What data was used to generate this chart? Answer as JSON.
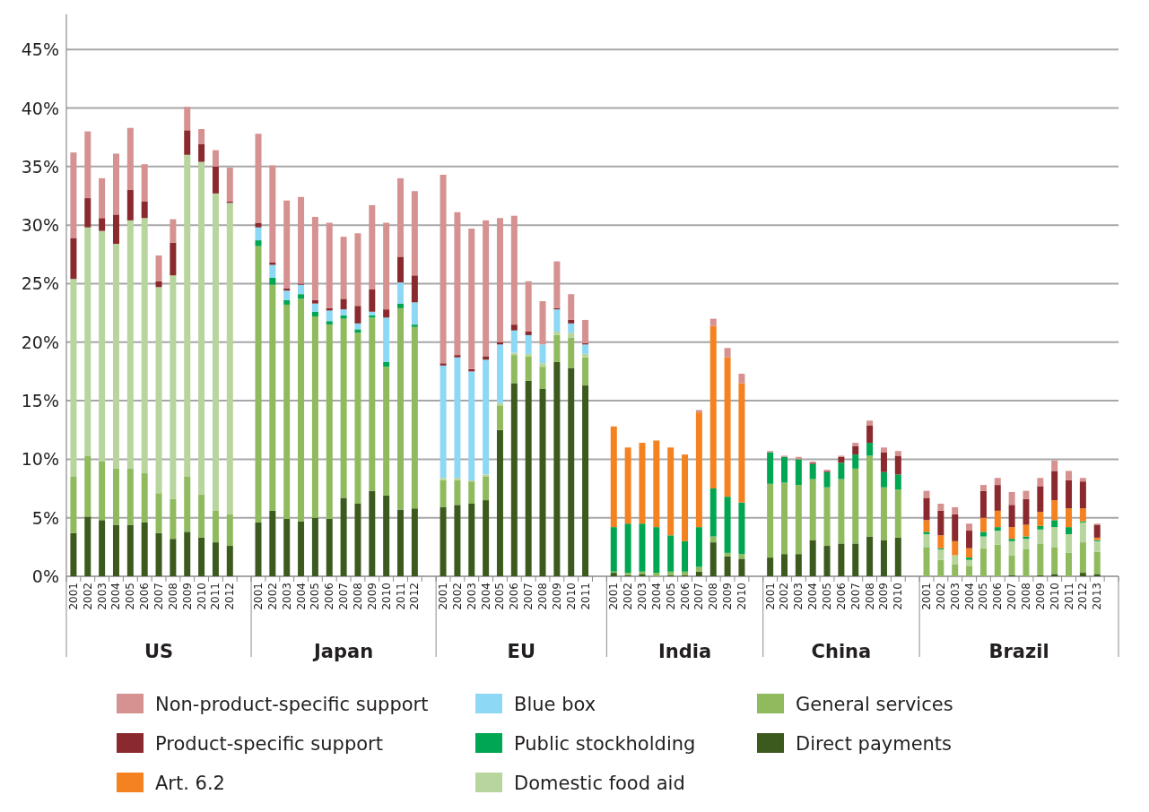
{
  "chart_data": {
    "type": "bar",
    "stacked": true,
    "categories": [
      "2001",
      "2002",
      "2003",
      "2004",
      "2005",
      "2006",
      "2007",
      "2008",
      "2009",
      "2010",
      "2011",
      "2012",
      null,
      "2001",
      "2002",
      "2003",
      "2004",
      "2005",
      "2006",
      "2007",
      "2008",
      "2009",
      "2010",
      "2011",
      "2012",
      null,
      "2001",
      "2002",
      "2003",
      "2004",
      "2005",
      "2006",
      "2007",
      "2008",
      "2009",
      "2010",
      "2011",
      null,
      "2001",
      "2002",
      "2003",
      "2004",
      "2005",
      "2006",
      "2007",
      "2008",
      "2009",
      "2010",
      null,
      "2001",
      "2002",
      "2003",
      "2004",
      "2005",
      "2006",
      "2007",
      "2008",
      "2009",
      "2010",
      null,
      "2001",
      "2002",
      "2003",
      "2004",
      "2005",
      "2006",
      "2007",
      "2008",
      "2009",
      "2010",
      "2011",
      "2012",
      "2013",
      null
    ],
    "annotations": [
      "US",
      "Japan",
      "EU",
      "India",
      "China",
      "Brazil"
    ],
    "ylim": [
      0,
      48
    ],
    "yticks": [
      {
        "value": 0,
        "label": "0%"
      },
      {
        "value": 5,
        "label": "5%"
      },
      {
        "value": 10,
        "label": "10%"
      },
      {
        "value": 15,
        "label": "15%"
      },
      {
        "value": 20,
        "label": "20%"
      },
      {
        "value": 25,
        "label": "25%"
      },
      {
        "value": 30,
        "label": "30%"
      },
      {
        "value": 35,
        "label": "35%"
      },
      {
        "value": 40,
        "label": "40%"
      },
      {
        "value": 45,
        "label": "45%"
      }
    ],
    "grid": "y",
    "legend": "bottom",
    "series": [
      {
        "name": "Direct payments",
        "color": "#3d5a1e",
        "values": [
          3.7,
          5.1,
          4.8,
          4.4,
          4.4,
          4.6,
          3.7,
          3.2,
          3.8,
          3.3,
          2.9,
          2.6,
          null,
          4.6,
          5.6,
          4.9,
          4.7,
          5.0,
          4.9,
          6.7,
          6.2,
          7.3,
          6.9,
          5.7,
          5.8,
          null,
          5.9,
          6.1,
          6.2,
          6.5,
          12.5,
          16.5,
          16.7,
          16.0,
          18.3,
          17.8,
          16.3,
          null,
          0.3,
          0.1,
          0.2,
          null,
          0.1,
          0.1,
          0.4,
          2.9,
          1.7,
          1.5,
          null,
          1.6,
          1.9,
          1.9,
          3.1,
          2.6,
          2.8,
          2.8,
          3.4,
          3.1,
          3.3,
          null,
          null,
          null,
          null,
          null,
          null,
          null,
          0.1,
          null,
          0.1,
          0.2,
          null,
          0.3,
          0.2,
          null
        ]
      },
      {
        "name": "General services",
        "color": "#8fbb5e",
        "values": [
          4.8,
          5.2,
          5.0,
          4.8,
          4.8,
          4.2,
          3.4,
          3.4,
          4.7,
          3.7,
          2.7,
          2.7,
          null,
          23.6,
          19.3,
          18.3,
          19.0,
          17.2,
          16.6,
          15.3,
          14.6,
          14.8,
          11.0,
          17.2,
          15.5,
          null,
          2.3,
          2.1,
          1.9,
          2.0,
          2.1,
          2.4,
          2.1,
          1.9,
          2.3,
          2.6,
          2.4,
          null,
          0.1,
          0.2,
          0.2,
          0.3,
          0.3,
          0.3,
          0.4,
          0.5,
          0.3,
          0.4,
          null,
          6.3,
          6.1,
          5.9,
          5.2,
          5.0,
          5.5,
          6.4,
          6.9,
          4.5,
          4.1,
          null,
          2.5,
          1.4,
          1.0,
          0.9,
          2.4,
          2.7,
          1.7,
          2.3,
          2.7,
          2.3,
          2.0,
          2.6,
          1.9,
          null
        ]
      },
      {
        "name": "Domestic food aid",
        "color": "#b7d59c",
        "values": [
          16.9,
          19.5,
          19.7,
          19.2,
          21.2,
          21.8,
          17.6,
          19.1,
          27.5,
          28.4,
          27.1,
          26.6,
          null,
          null,
          null,
          null,
          null,
          null,
          null,
          null,
          null,
          null,
          null,
          null,
          null,
          null,
          0.2,
          0.2,
          0.1,
          0.2,
          0.2,
          0.2,
          0.2,
          0.3,
          0.3,
          0.4,
          0.3,
          null,
          null,
          null,
          null,
          null,
          null,
          null,
          null,
          null,
          null,
          null,
          null,
          null,
          null,
          null,
          null,
          null,
          null,
          null,
          null,
          null,
          null,
          null,
          1.1,
          0.9,
          0.8,
          0.5,
          1.0,
          1.2,
          1.2,
          0.9,
          1.2,
          1.7,
          1.6,
          1.7,
          0.9,
          null
        ]
      },
      {
        "name": "Public stockholding",
        "color": "#00a651",
        "values": [
          null,
          null,
          null,
          null,
          null,
          null,
          null,
          null,
          null,
          null,
          null,
          null,
          null,
          0.5,
          0.6,
          0.4,
          0.4,
          0.4,
          0.3,
          0.3,
          0.3,
          0.2,
          0.4,
          0.4,
          0.2,
          null,
          null,
          null,
          null,
          null,
          null,
          null,
          null,
          null,
          null,
          null,
          null,
          null,
          3.8,
          4.2,
          4.1,
          3.9,
          3.1,
          2.6,
          3.4,
          4.1,
          4.8,
          4.4,
          null,
          2.7,
          2.2,
          2.2,
          1.3,
          1.3,
          1.4,
          1.2,
          1.1,
          1.3,
          1.3,
          null,
          0.2,
          0.1,
          null,
          0.2,
          0.4,
          0.3,
          0.2,
          0.2,
          0.3,
          0.6,
          0.6,
          0.1,
          0.1,
          null
        ]
      },
      {
        "name": "Blue box",
        "color": "#8dd8f5",
        "values": [
          null,
          null,
          null,
          null,
          null,
          null,
          null,
          null,
          null,
          null,
          null,
          null,
          null,
          1.1,
          1.1,
          0.8,
          0.8,
          0.7,
          0.9,
          0.5,
          0.5,
          0.3,
          3.8,
          1.8,
          1.9,
          null,
          9.6,
          10.3,
          9.3,
          9.8,
          5.0,
          1.9,
          1.6,
          1.6,
          1.9,
          0.8,
          0.8,
          null,
          null,
          null,
          null,
          null,
          null,
          null,
          null,
          null,
          null,
          null,
          null,
          null,
          null,
          null,
          null,
          null,
          null,
          null,
          null,
          null,
          null,
          null,
          null,
          null,
          null,
          null,
          null,
          null,
          null,
          null,
          null,
          null,
          null,
          null,
          null,
          null
        ]
      },
      {
        "name": "Art. 6.2",
        "color": "#f58220",
        "values": [
          null,
          null,
          null,
          null,
          null,
          null,
          null,
          null,
          null,
          null,
          null,
          null,
          null,
          null,
          null,
          null,
          null,
          null,
          null,
          null,
          null,
          null,
          null,
          null,
          null,
          null,
          null,
          null,
          null,
          null,
          null,
          null,
          null,
          null,
          null,
          null,
          null,
          null,
          8.6,
          6.5,
          6.9,
          7.4,
          7.5,
          7.4,
          9.8,
          13.9,
          11.9,
          10.2,
          null,
          null,
          null,
          null,
          null,
          null,
          null,
          null,
          null,
          null,
          null,
          null,
          1.0,
          1.1,
          1.2,
          0.8,
          1.2,
          1.4,
          1.0,
          1.0,
          1.2,
          1.7,
          1.6,
          1.1,
          0.2,
          null
        ]
      },
      {
        "name": "Product-specific support",
        "color": "#8b2a2e",
        "values": [
          3.5,
          2.5,
          1.1,
          2.5,
          2.6,
          1.4,
          0.5,
          2.8,
          2.1,
          1.5,
          2.3,
          0.1,
          null,
          0.4,
          0.2,
          0.2,
          0.1,
          0.3,
          0.2,
          0.9,
          1.5,
          1.9,
          0.7,
          2.2,
          2.3,
          null,
          0.2,
          0.2,
          0.2,
          0.3,
          0.2,
          0.5,
          0.3,
          null,
          0.1,
          0.3,
          0.1,
          null,
          null,
          null,
          null,
          null,
          null,
          null,
          null,
          null,
          null,
          null,
          null,
          null,
          null,
          null,
          0.1,
          0.1,
          0.5,
          0.7,
          1.5,
          1.7,
          1.6,
          null,
          1.9,
          2.1,
          2.3,
          1.5,
          2.3,
          2.2,
          1.9,
          2.2,
          2.2,
          2.5,
          2.4,
          2.3,
          1.1,
          null
        ]
      },
      {
        "name": "Non-product-specific support",
        "color": "#d69191",
        "values": [
          7.3,
          5.7,
          3.4,
          5.2,
          5.3,
          3.2,
          2.2,
          2.0,
          2.0,
          1.3,
          1.4,
          2.9,
          null,
          7.6,
          8.3,
          7.5,
          7.4,
          7.1,
          7.3,
          5.3,
          6.2,
          7.2,
          7.4,
          6.7,
          7.2,
          null,
          16.1,
          12.2,
          12.0,
          11.6,
          10.6,
          9.3,
          4.3,
          3.7,
          4.0,
          2.2,
          2.0,
          null,
          null,
          null,
          null,
          null,
          null,
          null,
          0.2,
          0.6,
          0.8,
          0.8,
          null,
          0.1,
          0.1,
          0.2,
          0.1,
          0.1,
          0.1,
          0.3,
          0.4,
          0.4,
          0.4,
          null,
          0.6,
          0.6,
          0.6,
          0.6,
          0.5,
          0.6,
          1.1,
          0.7,
          0.7,
          0.9,
          0.8,
          0.3,
          0.1,
          null
        ]
      }
    ]
  }
}
